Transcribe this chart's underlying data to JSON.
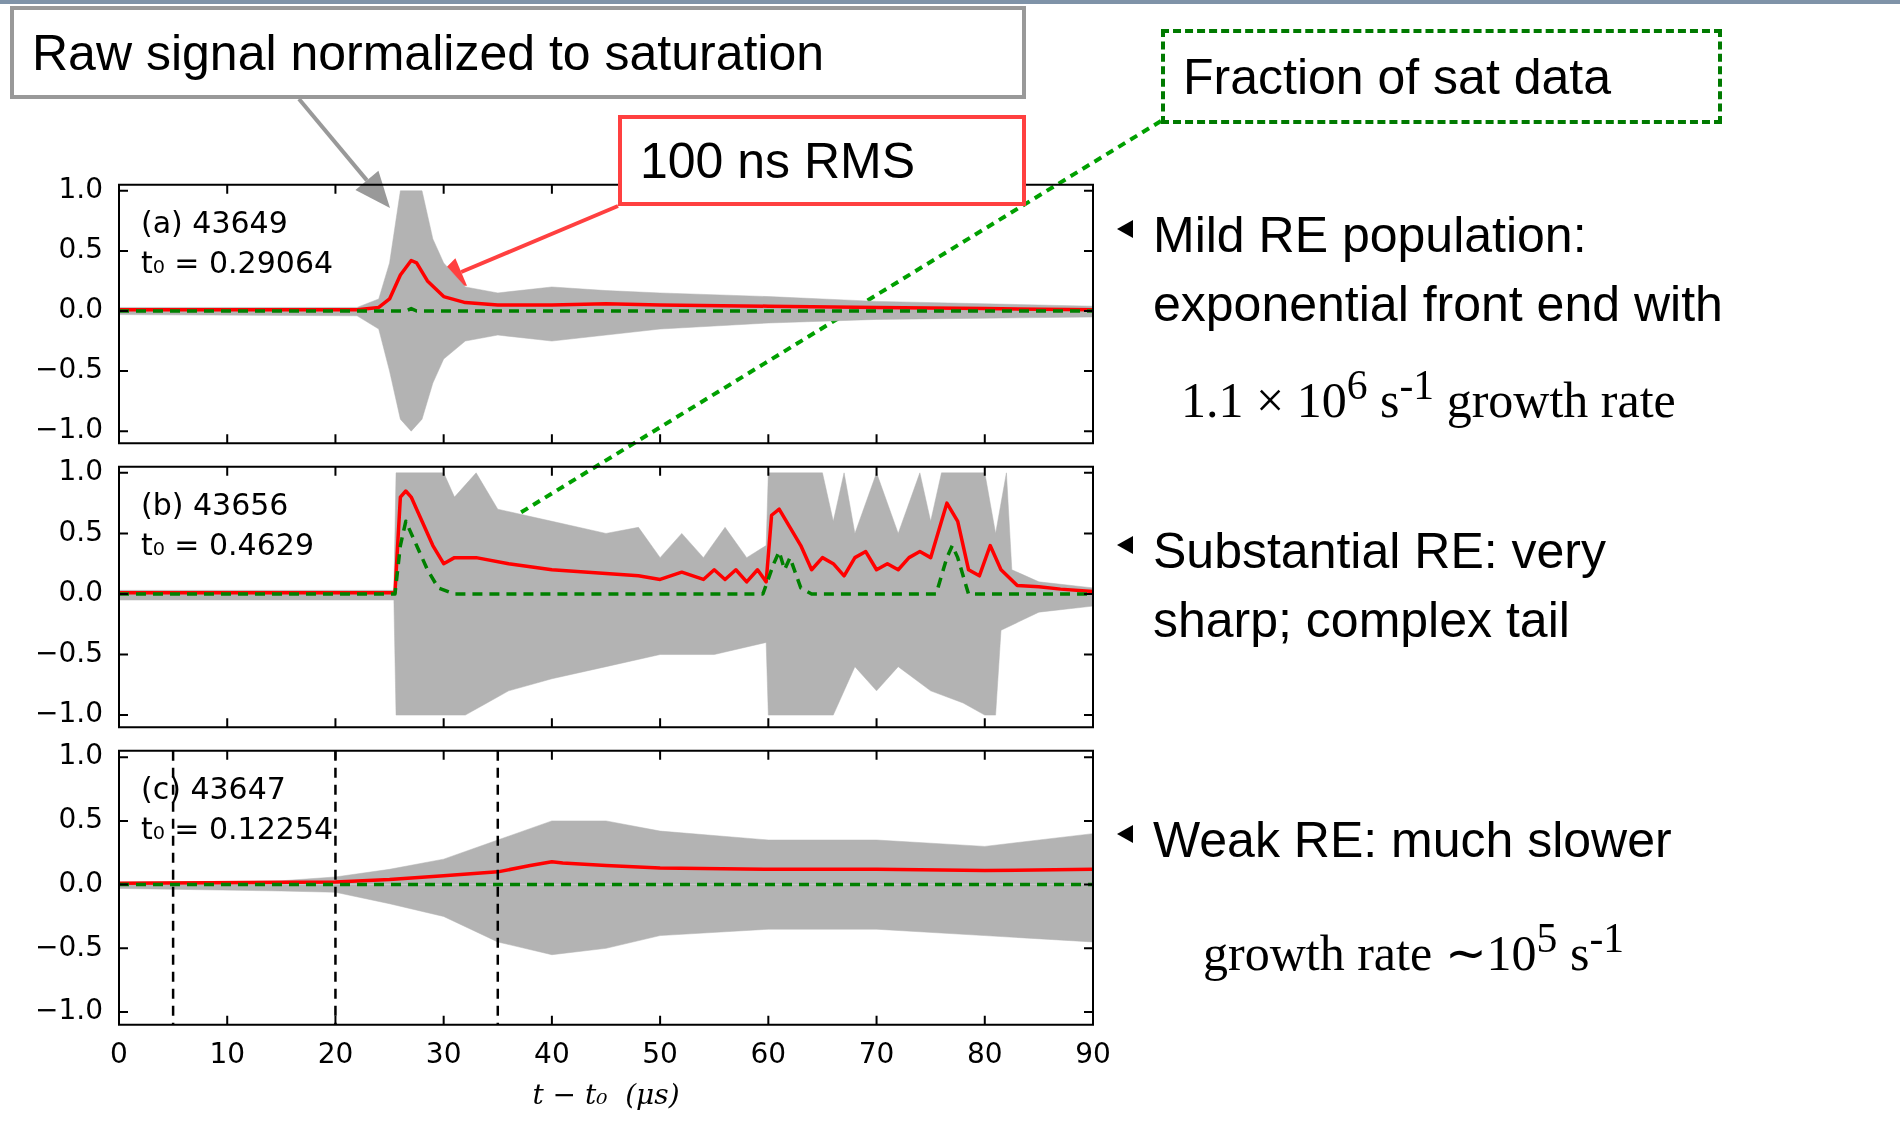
{
  "chart_data": [
    {
      "type": "line",
      "title": "(a) 43649",
      "subtitle": "t₀ = 0.29064",
      "xlim": [
        0,
        90
      ],
      "xticks": [
        0,
        10,
        20,
        30,
        40,
        50,
        60,
        70,
        80,
        90
      ],
      "ylim": [
        -1.1,
        1.05
      ],
      "yticks": [
        {
          "value": -1,
          "label": "−1.0"
        },
        {
          "value": -0.5,
          "label": "−0.5"
        },
        {
          "value": 0,
          "label": "0.0"
        },
        {
          "value": 0.5,
          "label": "0.5"
        },
        {
          "value": 1,
          "label": "1.0"
        }
      ],
      "tick_labels": "y",
      "annotations": [
        {
          "text": "Raw signal normalized to saturation"
        },
        {
          "text": "100 ns RMS"
        },
        "Mild RE population:",
        "exponential front end with",
        "1.1 × 10$^{6}$ s$^{-1}$ growth rate"
      ],
      "series": [
        {
          "type": "area",
          "color": "#b3b3b3",
          "x": [
            0,
            22,
            24,
            25,
            26,
            28,
            29,
            30,
            32,
            35,
            40,
            45,
            50,
            60,
            70,
            80,
            90
          ],
          "values": [
            0.03,
            0.03,
            0.1,
            0.4,
            1.0,
            1.0,
            0.6,
            0.4,
            0.2,
            0.15,
            0.2,
            0.17,
            0.15,
            0.12,
            0.08,
            0.06,
            0.04
          ]
        },
        {
          "type": "area",
          "color": "#b3b3b3",
          "x": [
            0,
            22,
            24,
            25,
            26,
            27,
            28,
            29,
            30,
            32,
            35,
            40,
            45,
            50,
            60,
            70,
            80,
            90
          ],
          "values": [
            -0.03,
            -0.04,
            -0.15,
            -0.5,
            -0.9,
            -1.0,
            -0.9,
            -0.6,
            -0.4,
            -0.25,
            -0.2,
            -0.25,
            -0.2,
            -0.15,
            -0.1,
            -0.07,
            -0.06,
            -0.05
          ]
        },
        {
          "type": "line",
          "color": "#008000",
          "line_style": "dashed",
          "x": [
            0,
            26.5,
            27,
            27.5,
            90
          ],
          "values": [
            0,
            0,
            0.02,
            0,
            0
          ]
        },
        {
          "type": "line",
          "color": "#ff0000",
          "x": [
            0,
            22,
            24,
            25,
            26,
            27,
            27.5,
            28.5,
            30,
            32,
            35,
            40,
            45,
            50,
            60,
            70,
            80,
            90
          ],
          "values": [
            0.01,
            0.01,
            0.03,
            0.1,
            0.3,
            0.42,
            0.4,
            0.25,
            0.12,
            0.07,
            0.05,
            0.05,
            0.06,
            0.05,
            0.04,
            0.03,
            0.02,
            0.01
          ]
        }
      ]
    },
    {
      "type": "line",
      "title": "(b) 43656",
      "subtitle": "t₀ = 0.4629",
      "xlim": [
        0,
        90
      ],
      "xticks": [
        0,
        10,
        20,
        30,
        40,
        50,
        60,
        70,
        80,
        90
      ],
      "ylim": [
        -1.1,
        1.05
      ],
      "yticks": [
        {
          "value": -1,
          "label": "−1.0"
        },
        {
          "value": -0.5,
          "label": "−0.5"
        },
        {
          "value": 0,
          "label": "0.0"
        },
        {
          "value": 0.5,
          "label": "0.5"
        },
        {
          "value": 1,
          "label": "1.0"
        }
      ],
      "tick_labels": "y",
      "annotations": [
        {
          "text": "Fraction of sat data"
        },
        "Substantial RE: very",
        "sharp; complex tail"
      ],
      "series": [
        {
          "type": "area",
          "color": "#b3b3b3",
          "x": [
            0,
            25.4,
            25.6,
            30,
            31,
            33,
            35,
            40,
            45,
            48,
            50,
            52,
            54,
            56,
            58,
            59.8,
            60,
            65,
            66,
            67,
            68,
            70,
            72,
            74,
            75,
            76,
            80,
            81,
            82,
            82.5,
            85,
            90
          ],
          "values": [
            0.03,
            0.03,
            1.0,
            1.0,
            0.8,
            1.0,
            0.7,
            0.6,
            0.5,
            0.55,
            0.3,
            0.5,
            0.3,
            0.55,
            0.3,
            0.4,
            1.0,
            1.0,
            0.6,
            1.0,
            0.5,
            1.0,
            0.5,
            1.0,
            0.6,
            1.0,
            1.0,
            0.5,
            1.0,
            0.2,
            0.1,
            0.05
          ]
        },
        {
          "type": "area",
          "color": "#b3b3b3",
          "x": [
            0,
            25.4,
            25.6,
            30,
            32,
            34,
            36,
            40,
            45,
            50,
            55,
            59.8,
            60,
            66,
            68,
            70,
            72,
            75,
            78,
            80,
            81,
            81.5,
            85,
            90
          ],
          "values": [
            -0.05,
            -0.05,
            -1.0,
            -1.0,
            -1.0,
            -0.9,
            -0.8,
            -0.7,
            -0.6,
            -0.5,
            -0.5,
            -0.4,
            -1.0,
            -1.0,
            -0.6,
            -0.8,
            -0.6,
            -0.8,
            -0.9,
            -1.0,
            -1.0,
            -0.3,
            -0.15,
            -0.1
          ]
        },
        {
          "type": "line",
          "color": "#008000",
          "line_style": "dashed",
          "x": [
            0,
            25.5,
            26,
            26.5,
            27.5,
            28.5,
            29.5,
            31,
            59.5,
            60.5,
            61,
            61.5,
            62,
            63,
            64,
            75.5,
            76.5,
            77,
            77.5,
            78.5,
            90
          ],
          "values": [
            0,
            0,
            0.4,
            0.6,
            0.4,
            0.2,
            0.05,
            0,
            0,
            0.25,
            0.35,
            0.2,
            0.3,
            0.05,
            0,
            0,
            0.3,
            0.4,
            0.3,
            0,
            0
          ]
        },
        {
          "type": "line",
          "color": "#ff0000",
          "x": [
            0,
            25.5,
            26,
            26.5,
            27,
            28,
            29,
            30,
            31,
            33,
            36,
            40,
            45,
            48,
            50,
            52,
            54,
            55,
            56,
            57,
            58,
            59,
            59.8,
            60.3,
            61,
            62,
            63,
            64,
            65,
            66,
            67,
            68,
            69,
            70,
            71,
            72,
            73,
            74,
            75,
            76,
            76.5,
            77.5,
            78.5,
            79.5,
            80.5,
            81.5,
            83,
            85,
            87,
            90
          ],
          "values": [
            0.01,
            0.01,
            0.8,
            0.85,
            0.8,
            0.6,
            0.4,
            0.25,
            0.3,
            0.3,
            0.25,
            0.2,
            0.17,
            0.15,
            0.12,
            0.18,
            0.12,
            0.2,
            0.12,
            0.2,
            0.1,
            0.2,
            0.1,
            0.65,
            0.7,
            0.55,
            0.4,
            0.2,
            0.3,
            0.25,
            0.15,
            0.3,
            0.35,
            0.2,
            0.25,
            0.2,
            0.3,
            0.35,
            0.3,
            0.6,
            0.75,
            0.6,
            0.2,
            0.15,
            0.4,
            0.2,
            0.07,
            0.06,
            0.04,
            0.02
          ]
        }
      ]
    },
    {
      "type": "line",
      "title": "(c) 43647",
      "subtitle": "t₀ = 0.12254",
      "xlabel": "t − t₀  (μs)",
      "xlim": [
        0,
        90
      ],
      "xticks": [
        0,
        10,
        20,
        30,
        40,
        50,
        60,
        70,
        80,
        90
      ],
      "ylim": [
        -1.1,
        1.05
      ],
      "yticks": [
        {
          "value": -1,
          "label": "−1.0"
        },
        {
          "value": -0.5,
          "label": "−0.5"
        },
        {
          "value": 0,
          "label": "0.0"
        },
        {
          "value": 0.5,
          "label": "0.5"
        },
        {
          "value": 1,
          "label": "1.0"
        }
      ],
      "ref_lines": [
        {
          "axis": "x",
          "value": 5,
          "color": "#000000",
          "line_style": "dashed"
        },
        {
          "axis": "x",
          "value": 20,
          "color": "#000000",
          "line_style": "dashed"
        },
        {
          "axis": "x",
          "value": 35,
          "color": "#000000",
          "line_style": "dashed"
        }
      ],
      "annotations": [
        "Weak RE: much slower",
        "growth rate ∼10$^{5}$ s$^{-1}$"
      ],
      "series": [
        {
          "type": "area",
          "color": "#b3b3b3",
          "x": [
            0,
            15,
            20,
            25,
            30,
            35,
            40,
            45,
            50,
            60,
            70,
            80,
            90
          ],
          "values": [
            0.02,
            0.03,
            0.06,
            0.12,
            0.2,
            0.35,
            0.5,
            0.5,
            0.42,
            0.35,
            0.35,
            0.3,
            0.4
          ]
        },
        {
          "type": "area",
          "color": "#b3b3b3",
          "x": [
            0,
            15,
            20,
            25,
            30,
            35,
            40,
            45,
            50,
            60,
            70,
            80,
            90
          ],
          "values": [
            -0.03,
            -0.05,
            -0.06,
            -0.15,
            -0.25,
            -0.45,
            -0.55,
            -0.5,
            -0.4,
            -0.35,
            -0.35,
            -0.4,
            -0.45
          ]
        },
        {
          "type": "line",
          "color": "#008000",
          "line_style": "dashed",
          "x": [
            0,
            90
          ],
          "values": [
            0,
            0
          ]
        },
        {
          "type": "line",
          "color": "#ff0000",
          "x": [
            0,
            20,
            25,
            30,
            35,
            38,
            40,
            41,
            45,
            50,
            60,
            70,
            80,
            90
          ],
          "values": [
            0.01,
            0.02,
            0.04,
            0.07,
            0.1,
            0.15,
            0.18,
            0.17,
            0.15,
            0.13,
            0.12,
            0.12,
            0.11,
            0.12
          ]
        }
      ]
    }
  ]
}
